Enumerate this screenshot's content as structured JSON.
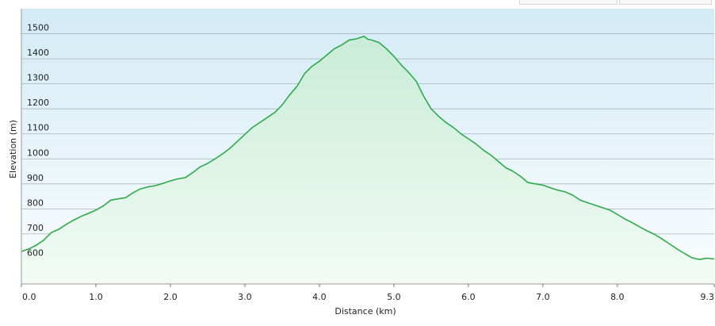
{
  "chart_data": {
    "type": "area",
    "xlabel": "Distance  (km)",
    "ylabel": "Elevation (m)",
    "xlim": [
      0,
      9.3
    ],
    "ylim": [
      500,
      1600
    ],
    "x_ticks": [
      0.0,
      1.0,
      2.0,
      3.0,
      4.0,
      5.0,
      6.0,
      7.0,
      8.0,
      9.3
    ],
    "x_tick_labels": [
      "0.0",
      "1.0",
      "2.0",
      "3.0",
      "4.0",
      "5.0",
      "6.0",
      "7.0",
      "8.0",
      "9.3"
    ],
    "y_ticks": [
      600,
      700,
      800,
      900,
      1000,
      1100,
      1200,
      1300,
      1400,
      1500
    ],
    "y_tick_labels": [
      "600",
      "700",
      "800",
      "900",
      "1000",
      "1100",
      "1200",
      "1300",
      "1400",
      "1500"
    ],
    "grid": "horizontal",
    "line_color": "#2eaa4a",
    "fill_top_color": "#c9ecd8",
    "fill_bottom_color": "#f2fbf5",
    "background_top_color": "#d3ebf6",
    "background_bottom_color": "#fbfdfe",
    "x": [
      0.0,
      0.1,
      0.2,
      0.3,
      0.4,
      0.45,
      0.5,
      0.6,
      0.7,
      0.8,
      0.9,
      1.0,
      1.1,
      1.2,
      1.3,
      1.4,
      1.5,
      1.6,
      1.7,
      1.8,
      1.9,
      2.0,
      2.1,
      2.2,
      2.3,
      2.4,
      2.5,
      2.6,
      2.7,
      2.8,
      2.9,
      3.0,
      3.1,
      3.2,
      3.3,
      3.4,
      3.5,
      3.6,
      3.7,
      3.8,
      3.9,
      4.0,
      4.1,
      4.2,
      4.3,
      4.4,
      4.5,
      4.55,
      4.6,
      4.65,
      4.7,
      4.8,
      4.9,
      5.0,
      5.1,
      5.2,
      5.3,
      5.4,
      5.5,
      5.6,
      5.7,
      5.8,
      5.9,
      6.0,
      6.1,
      6.2,
      6.3,
      6.4,
      6.5,
      6.6,
      6.7,
      6.8,
      6.9,
      7.0,
      7.1,
      7.2,
      7.3,
      7.4,
      7.5,
      7.6,
      7.7,
      7.8,
      7.9,
      8.0,
      8.1,
      8.2,
      8.3,
      8.4,
      8.5,
      8.6,
      8.7,
      8.8,
      8.9,
      9.0,
      9.1,
      9.2,
      9.3
    ],
    "y": [
      630,
      640,
      655,
      675,
      705,
      712,
      718,
      738,
      755,
      770,
      782,
      795,
      812,
      835,
      840,
      845,
      865,
      880,
      888,
      893,
      902,
      912,
      920,
      925,
      945,
      968,
      982,
      1000,
      1020,
      1042,
      1070,
      1098,
      1125,
      1145,
      1165,
      1185,
      1215,
      1255,
      1290,
      1340,
      1370,
      1390,
      1415,
      1440,
      1455,
      1475,
      1480,
      1485,
      1490,
      1478,
      1475,
      1465,
      1440,
      1410,
      1375,
      1345,
      1310,
      1250,
      1200,
      1170,
      1145,
      1125,
      1100,
      1080,
      1060,
      1035,
      1015,
      990,
      965,
      950,
      930,
      905,
      900,
      895,
      885,
      875,
      868,
      855,
      835,
      825,
      815,
      805,
      795,
      778,
      760,
      745,
      728,
      712,
      698,
      680,
      660,
      640,
      622,
      605,
      598,
      603,
      600
    ]
  }
}
